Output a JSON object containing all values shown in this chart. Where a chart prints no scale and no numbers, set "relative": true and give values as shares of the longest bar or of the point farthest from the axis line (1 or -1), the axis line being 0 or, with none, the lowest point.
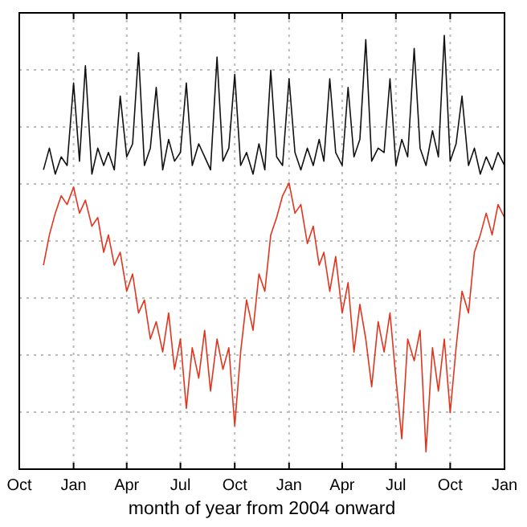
{
  "chart_data": {
    "type": "line",
    "xlabel": "month of year from 2004 onward",
    "relative": true,
    "grid": true,
    "line_style": "solid",
    "xlim": [
      "2004-10-01",
      "2007-01-01"
    ],
    "xticks": [
      {
        "value": "2004-10-01",
        "label": "Oct"
      },
      {
        "value": "2005-01-01",
        "label": "Jan"
      },
      {
        "value": "2005-04-01",
        "label": "Apr"
      },
      {
        "value": "2005-07-01",
        "label": "Jul"
      },
      {
        "value": "2005-10-01",
        "label": "Oct"
      },
      {
        "value": "2006-01-01",
        "label": "Jan"
      },
      {
        "value": "2006-04-01",
        "label": "Apr"
      },
      {
        "value": "2006-07-01",
        "label": "Jul"
      },
      {
        "value": "2006-10-01",
        "label": "Oct"
      },
      {
        "value": "2007-01-01",
        "label": "Jan"
      }
    ],
    "x": [
      "2004-11-11",
      "2004-11-21",
      "2004-12-01",
      "2004-12-11",
      "2004-12-21",
      "2005-01-01",
      "2005-01-11",
      "2005-01-21",
      "2005-02-01",
      "2005-02-11",
      "2005-02-21",
      "2005-03-01",
      "2005-03-11",
      "2005-03-21",
      "2005-04-01",
      "2005-04-11",
      "2005-04-21",
      "2005-05-01",
      "2005-05-11",
      "2005-05-21",
      "2005-06-01",
      "2005-06-11",
      "2005-06-21",
      "2005-07-01",
      "2005-07-11",
      "2005-07-21",
      "2005-08-01",
      "2005-08-11",
      "2005-08-21",
      "2005-09-01",
      "2005-09-11",
      "2005-09-21",
      "2005-10-01",
      "2005-10-11",
      "2005-10-21",
      "2005-11-01",
      "2005-11-11",
      "2005-11-21",
      "2005-12-01",
      "2005-12-11",
      "2005-12-21",
      "2006-01-01",
      "2006-01-11",
      "2006-01-21",
      "2006-02-01",
      "2006-02-11",
      "2006-02-21",
      "2006-03-01",
      "2006-03-11",
      "2006-03-21",
      "2006-04-01",
      "2006-04-11",
      "2006-04-21",
      "2006-05-01",
      "2006-05-11",
      "2006-05-21",
      "2006-06-01",
      "2006-06-11",
      "2006-06-21",
      "2006-07-01",
      "2006-07-11",
      "2006-07-21",
      "2006-08-01",
      "2006-08-11",
      "2006-08-21",
      "2006-09-01",
      "2006-09-11",
      "2006-09-21",
      "2006-10-01",
      "2006-10-11",
      "2006-10-21",
      "2006-11-01",
      "2006-11-11",
      "2006-11-21",
      "2006-12-01",
      "2006-12-11",
      "2006-12-21",
      "2007-01-01"
    ],
    "series": [
      {
        "color": "#111111",
        "values": [
          0.69,
          0.74,
          0.68,
          0.72,
          0.7,
          0.89,
          0.71,
          0.93,
          0.68,
          0.74,
          0.7,
          0.73,
          0.69,
          0.86,
          0.72,
          0.75,
          0.96,
          0.7,
          0.74,
          0.88,
          0.69,
          0.76,
          0.71,
          0.73,
          0.89,
          0.7,
          0.75,
          0.72,
          0.69,
          0.95,
          0.71,
          0.74,
          0.91,
          0.7,
          0.73,
          0.68,
          0.75,
          0.69,
          0.92,
          0.72,
          0.7,
          0.9,
          0.73,
          0.69,
          0.74,
          0.7,
          0.76,
          0.71,
          0.9,
          0.73,
          0.7,
          0.88,
          0.72,
          0.76,
          0.99,
          0.71,
          0.74,
          0.73,
          0.9,
          0.7,
          0.76,
          0.72,
          0.97,
          0.74,
          0.7,
          0.78,
          0.72,
          1.0,
          0.71,
          0.75,
          0.86,
          0.7,
          0.74,
          0.68,
          0.72,
          0.69,
          0.73,
          0.7
        ]
      },
      {
        "color": "#e3341e",
        "values": [
          0.47,
          0.54,
          0.59,
          0.63,
          0.61,
          0.65,
          0.59,
          0.62,
          0.56,
          0.58,
          0.5,
          0.54,
          0.47,
          0.5,
          0.41,
          0.45,
          0.36,
          0.39,
          0.3,
          0.34,
          0.27,
          0.36,
          0.23,
          0.3,
          0.14,
          0.28,
          0.21,
          0.32,
          0.18,
          0.3,
          0.23,
          0.28,
          0.1,
          0.27,
          0.39,
          0.32,
          0.45,
          0.41,
          0.54,
          0.58,
          0.63,
          0.66,
          0.59,
          0.61,
          0.52,
          0.56,
          0.47,
          0.5,
          0.41,
          0.49,
          0.36,
          0.43,
          0.27,
          0.38,
          0.3,
          0.19,
          0.34,
          0.27,
          0.36,
          0.21,
          0.07,
          0.3,
          0.25,
          0.32,
          0.04,
          0.28,
          0.18,
          0.3,
          0.13,
          0.28,
          0.41,
          0.36,
          0.5,
          0.54,
          0.59,
          0.54,
          0.61,
          0.58
        ]
      }
    ]
  }
}
